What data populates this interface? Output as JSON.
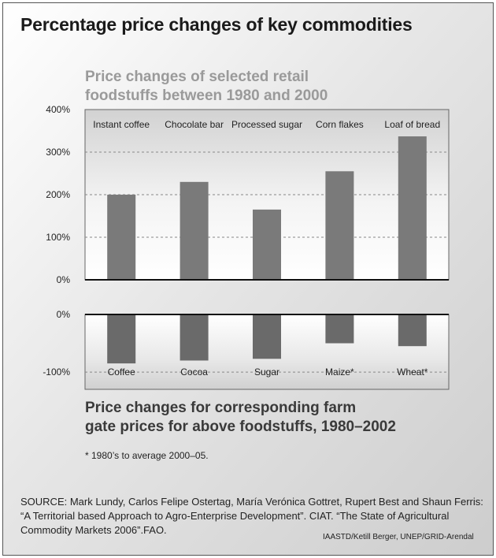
{
  "title": "Percentage price changes of key commodities",
  "chart_data": [
    {
      "type": "bar",
      "title": "Price changes of selected retail foodstuffs between 1980 and 2000",
      "title_lines": [
        "Price changes of selected retail",
        "foodstuffs between 1980 and 2000"
      ],
      "categories": [
        "Instant coffee",
        "Chocolate bar",
        "Processed sugar",
        "Corn flakes",
        "Loaf of bread"
      ],
      "values": [
        200,
        230,
        165,
        255,
        337
      ],
      "ylim": [
        0,
        400
      ],
      "yticks": [
        "400%",
        "300%",
        "200%",
        "100%",
        "0%"
      ],
      "ytick_values": [
        400,
        300,
        200,
        100,
        0
      ],
      "grid": "dashed horizontal",
      "bar_color": "#7a7a7a"
    },
    {
      "type": "bar",
      "title": "Price changes for corresponding farm gate prices for above foodstuffs, 1980–2002",
      "title_lines": [
        "Price changes for corresponding farm",
        "gate prices for above foodstuffs, 1980–2002"
      ],
      "categories": [
        "Coffee",
        "Cocoa",
        "Sugar",
        "Maize*",
        "Wheat*"
      ],
      "values": [
        -85,
        -80,
        -77,
        -50,
        -55
      ],
      "ylim": [
        -130,
        0
      ],
      "yticks": [
        "0%",
        "-100%"
      ],
      "ytick_values": [
        0,
        -100
      ],
      "grid": "dashed horizontal",
      "bar_color": "#6a6a6a"
    }
  ],
  "footnote": "* 1980’s to average 2000–05.",
  "source_lines": [
    "SOURCE: Mark Lundy, Carlos Felipe Ostertag, María Verónica Gottret, Rupert Best and Shaun Ferris:",
    "“A Territorial based Approach to Agro-Enterprise Development”. CIAT. “The State of Agricultural",
    "Commodity Markets 2006”.FAO."
  ],
  "credit": "IAASTD/Ketill Berger, UNEP/GRID-Arendal"
}
